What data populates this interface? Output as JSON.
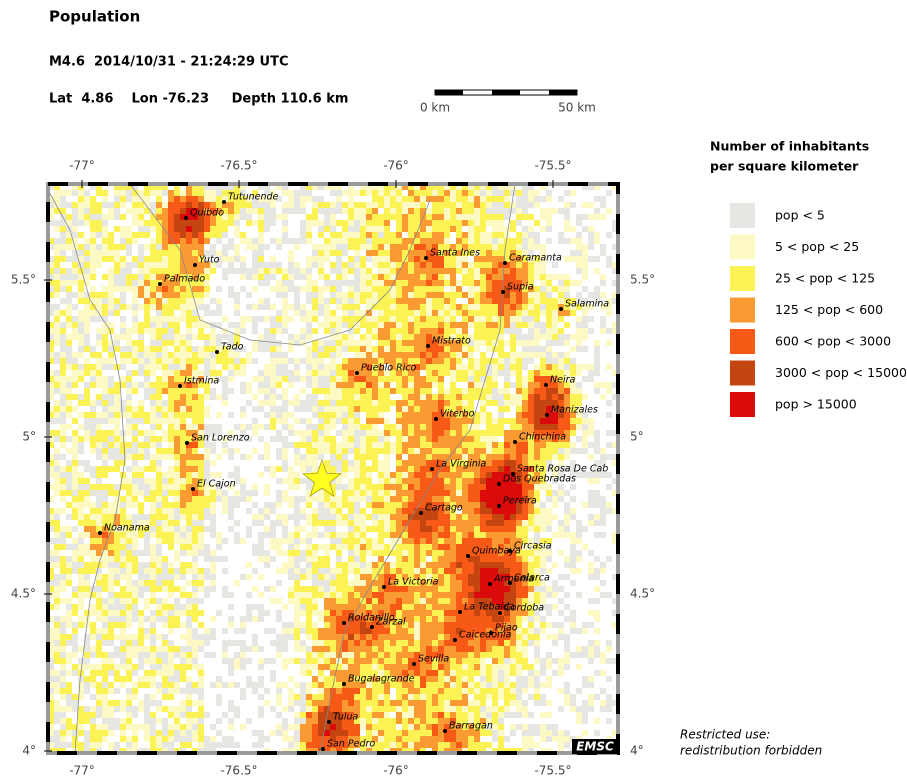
{
  "header": {
    "title": "Population",
    "event": "M4.6  2014/10/31 - 21:24:29 UTC",
    "location": "Lat  4.86    Lon -76.23     Depth 110.6 km"
  },
  "scale_bar": {
    "start": "0 km",
    "end": "50 km"
  },
  "map": {
    "lon_ticks": [
      {
        "value": -77,
        "label": "-77°"
      },
      {
        "value": -76.5,
        "label": "-76.5°"
      },
      {
        "value": -76,
        "label": "-76°"
      },
      {
        "value": -75.5,
        "label": "-75.5°"
      }
    ],
    "lat_ticks": [
      {
        "value": 5.5,
        "label": "5.5°"
      },
      {
        "value": 5,
        "label": "5°"
      },
      {
        "value": 4.5,
        "label": "4.5°"
      },
      {
        "value": 4,
        "label": "4°"
      }
    ],
    "cities": [
      "Tutunende",
      "Quibdo",
      "Yuto",
      "Palmado",
      "Tado",
      "Istmina",
      "San Lorenzo",
      "El Cajon",
      "Noanama",
      "Pueblo Rico",
      "Santa Ines",
      "Caramanta",
      "Supia",
      "Salamina",
      "Mistrato",
      "Neira",
      "Manizales",
      "Viterbo",
      "Chinchina",
      "La Virginia",
      "Santa Rosa De Cab",
      "Dos Quebradas",
      "Pereira",
      "Cartago",
      "Quimbaya",
      "Circasia",
      "Calarca",
      "Armenia",
      "La Victoria",
      "La Tebaida",
      "Cordoba",
      "Roldanillo",
      "Zarzal",
      "Pijao",
      "Caicedonia",
      "Sevilla",
      "Bugalagrande",
      "Tulua",
      "Barragan",
      "San Pedro"
    ],
    "logo": "EMSC"
  },
  "legend": {
    "title": [
      "Number of inhabitants",
      "per square kilometer"
    ],
    "items": [
      {
        "label": "pop < 5",
        "color": "#e6e6e2"
      },
      {
        "label": "5 < pop < 25",
        "color": "#fdf9c4"
      },
      {
        "label": "25 < pop < 125",
        "color": "#fbf253"
      },
      {
        "label": "125 < pop < 600",
        "color": "#f99a32"
      },
      {
        "label": "600 < pop < 3000",
        "color": "#f65a16"
      },
      {
        "label": "3000 < pop < 15000",
        "color": "#c44510"
      },
      {
        "label": "pop > 15000",
        "color": "#dc0b0b"
      }
    ]
  },
  "notice": [
    "Restricted use:",
    "redistribution forbidden"
  ]
}
